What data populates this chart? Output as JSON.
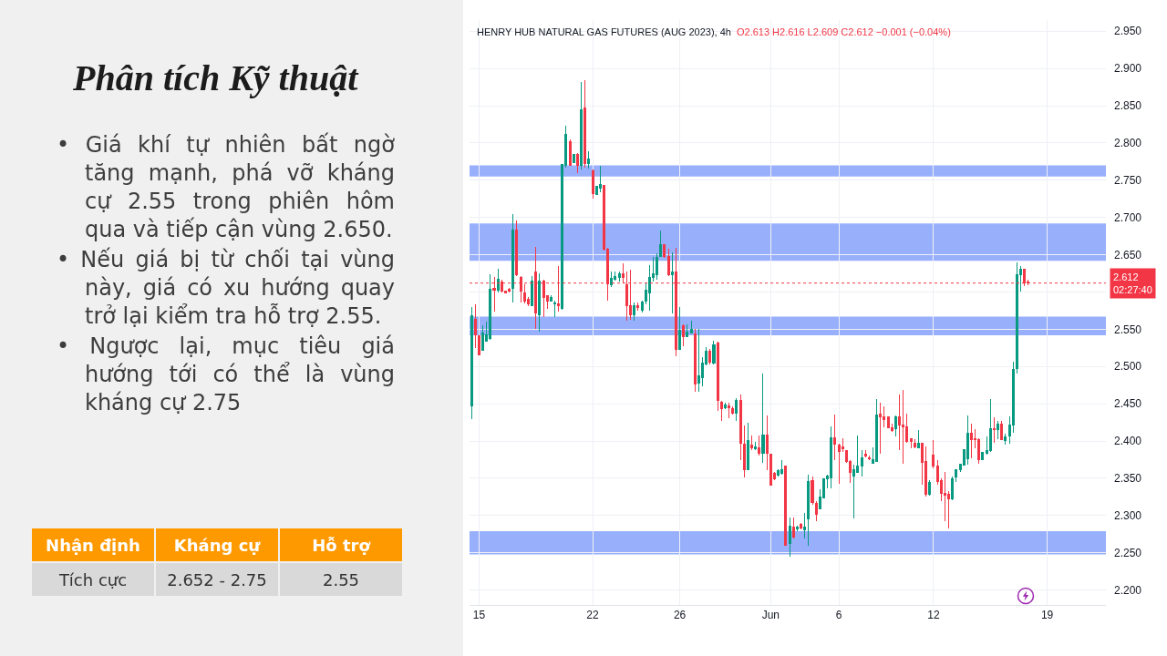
{
  "chart_data": [
    {
      "type": "candlestick",
      "title": "HENRY HUB NATURAL GAS FUTURES (AUG 2023), 4h",
      "annotations": [
        "O2.613 H2.616 L2.609 C2.612 −0.001 (−0.04%)"
      ],
      "categories": [
        null,
        null,
        "15",
        null,
        null,
        null,
        null,
        null,
        null,
        null,
        null,
        null,
        null,
        null,
        null,
        null,
        null,
        null,
        null,
        null,
        null,
        null,
        null,
        null,
        null,
        null,
        null,
        null,
        null,
        null,
        null,
        null,
        "22",
        null,
        null,
        null,
        null,
        null,
        null,
        null,
        null,
        null,
        null,
        null,
        null,
        null,
        null,
        null,
        null,
        null,
        null,
        null,
        null,
        null,
        null,
        "26",
        null,
        null,
        null,
        null,
        null,
        null,
        null,
        null,
        null,
        null,
        null,
        null,
        null,
        null,
        null,
        null,
        null,
        null,
        null,
        null,
        null,
        null,
        null,
        "Jun",
        null,
        null,
        null,
        null,
        null,
        null,
        null,
        null,
        null,
        null,
        null,
        null,
        null,
        null,
        null,
        null,
        null,
        "6",
        null,
        null,
        null,
        null,
        null,
        null,
        null,
        null,
        null,
        null,
        null,
        null,
        null,
        null,
        null,
        null,
        null,
        null,
        null,
        null,
        null,
        null,
        null,
        null,
        "12",
        null,
        null,
        null,
        null,
        null,
        null,
        null,
        null,
        null,
        null,
        null,
        null,
        null,
        null,
        null,
        null,
        null,
        null,
        null,
        null,
        null,
        null,
        null,
        null,
        null,
        null,
        null,
        null,
        null,
        "19",
        null,
        null,
        null,
        null,
        null,
        null,
        null,
        null,
        null,
        null,
        null,
        null,
        null,
        null,
        null
      ],
      "ohlc": [
        [
          2.447,
          2.58,
          2.43,
          2.568
        ],
        [
          2.563,
          2.583,
          2.525,
          2.542
        ],
        [
          2.541,
          2.542,
          2.515,
          2.516
        ],
        [
          2.522,
          2.555,
          2.521,
          2.545
        ],
        [
          2.534,
          2.56,
          2.533,
          2.542
        ],
        [
          2.538,
          2.624,
          2.536,
          2.604
        ],
        [
          2.605,
          2.62,
          2.574,
          2.602
        ],
        [
          2.602,
          2.631,
          2.6,
          2.617
        ],
        [
          2.614,
          2.616,
          2.6,
          2.601
        ],
        [
          2.601,
          2.602,
          2.598,
          2.599
        ],
        [
          2.604,
          2.605,
          2.6,
          2.601
        ],
        [
          2.605,
          2.705,
          2.586,
          2.683
        ],
        [
          2.683,
          2.696,
          2.622,
          2.623
        ],
        [
          2.62,
          2.621,
          2.586,
          2.601
        ],
        [
          2.599,
          2.61,
          2.585,
          2.588
        ],
        [
          2.59,
          2.593,
          2.581,
          2.584
        ],
        [
          2.582,
          2.621,
          2.581,
          2.615
        ],
        [
          2.627,
          2.661,
          2.55,
          2.572
        ],
        [
          2.57,
          2.625,
          2.547,
          2.615
        ],
        [
          2.615,
          2.616,
          2.566,
          2.593
        ],
        [
          2.595,
          2.596,
          2.577,
          2.588
        ],
        [
          2.588,
          2.596,
          2.587,
          2.593
        ],
        [
          2.584,
          2.589,
          2.566,
          2.585
        ],
        [
          2.584,
          2.635,
          2.574,
          2.582
        ],
        [
          2.578,
          2.772,
          2.576,
          2.771
        ],
        [
          2.77,
          2.823,
          2.767,
          2.812
        ],
        [
          2.802,
          2.805,
          2.769,
          2.77
        ],
        [
          2.774,
          2.785,
          2.773,
          2.785
        ],
        [
          2.785,
          2.787,
          2.759,
          2.77
        ],
        [
          2.77,
          2.882,
          2.764,
          2.845
        ],
        [
          2.847,
          2.884,
          2.767,
          2.773
        ],
        [
          2.773,
          2.789,
          2.766,
          2.779
        ],
        [
          2.763,
          2.764,
          2.725,
          2.732
        ],
        [
          2.731,
          2.743,
          2.73,
          2.742
        ],
        [
          2.74,
          2.769,
          2.734,
          2.744
        ],
        [
          2.743,
          2.744,
          2.656,
          2.657
        ],
        [
          2.658,
          2.659,
          2.589,
          2.611
        ],
        [
          2.61,
          2.628,
          2.607,
          2.618
        ],
        [
          2.617,
          2.628,
          2.615,
          2.621
        ],
        [
          2.62,
          2.627,
          2.614,
          2.625
        ],
        [
          2.625,
          2.639,
          2.612,
          2.62
        ],
        [
          2.61,
          2.627,
          2.561,
          2.582
        ],
        [
          2.582,
          2.63,
          2.563,
          2.57
        ],
        [
          2.57,
          2.586,
          2.561,
          2.582
        ],
        [
          2.582,
          2.586,
          2.575,
          2.579
        ],
        [
          2.576,
          2.589,
          2.573,
          2.587
        ],
        [
          2.588,
          2.613,
          2.584,
          2.602
        ],
        [
          2.599,
          2.636,
          2.575,
          2.619
        ],
        [
          2.619,
          2.647,
          2.614,
          2.625
        ],
        [
          2.623,
          2.652,
          2.617,
          2.647
        ],
        [
          2.648,
          2.682,
          2.648,
          2.663
        ],
        [
          2.663,
          2.664,
          2.646,
          2.648
        ],
        [
          2.648,
          2.658,
          2.621,
          2.623
        ],
        [
          2.623,
          2.653,
          2.571,
          2.627
        ],
        [
          2.627,
          2.659,
          2.514,
          2.523
        ],
        [
          2.523,
          2.58,
          2.522,
          2.549
        ],
        [
          2.555,
          2.557,
          2.527,
          2.54
        ],
        [
          2.54,
          2.557,
          2.539,
          2.546
        ],
        [
          2.545,
          2.562,
          2.544,
          2.55
        ],
        [
          2.544,
          2.55,
          2.466,
          2.476
        ],
        [
          2.478,
          2.55,
          2.466,
          2.487
        ],
        [
          2.485,
          2.512,
          2.474,
          2.505
        ],
        [
          2.503,
          2.526,
          2.502,
          2.521
        ],
        [
          2.521,
          2.523,
          2.503,
          2.506
        ],
        [
          2.505,
          2.534,
          2.503,
          2.529
        ],
        [
          2.532,
          2.533,
          2.441,
          2.454
        ],
        [
          2.452,
          2.454,
          2.427,
          2.443
        ],
        [
          2.445,
          2.451,
          2.443,
          2.449
        ],
        [
          2.447,
          2.451,
          2.431,
          2.445
        ],
        [
          2.443,
          2.447,
          2.436,
          2.438
        ],
        [
          2.438,
          2.457,
          2.427,
          2.454
        ],
        [
          2.454,
          2.463,
          2.374,
          2.397
        ],
        [
          2.396,
          2.421,
          2.351,
          2.362
        ],
        [
          2.362,
          2.424,
          2.361,
          2.401
        ],
        [
          2.395,
          2.407,
          2.388,
          2.391
        ],
        [
          2.39,
          2.399,
          2.388,
          2.392
        ],
        [
          2.391,
          2.407,
          2.381,
          2.383
        ],
        [
          2.383,
          2.491,
          2.371,
          2.408
        ],
        [
          2.408,
          2.434,
          2.361,
          2.383
        ],
        [
          2.382,
          2.383,
          2.34,
          2.341
        ],
        [
          2.357,
          2.359,
          2.347,
          2.349
        ],
        [
          2.354,
          2.362,
          2.353,
          2.36
        ],
        [
          2.357,
          2.375,
          2.355,
          2.362
        ],
        [
          2.366,
          2.367,
          2.259,
          2.26
        ],
        [
          2.263,
          2.298,
          2.245,
          2.286
        ],
        [
          2.284,
          2.298,
          2.269,
          2.271
        ],
        [
          2.282,
          2.286,
          2.279,
          2.285
        ],
        [
          2.288,
          2.29,
          2.282,
          2.283
        ],
        [
          2.281,
          2.304,
          2.269,
          2.284
        ],
        [
          2.296,
          2.355,
          2.26,
          2.346
        ],
        [
          2.347,
          2.353,
          2.315,
          2.317
        ],
        [
          2.316,
          2.319,
          2.292,
          2.302
        ],
        [
          2.309,
          2.335,
          2.308,
          2.325
        ],
        [
          2.324,
          2.35,
          2.323,
          2.349
        ],
        [
          2.349,
          2.355,
          2.337,
          2.353
        ],
        [
          2.351,
          2.42,
          2.337,
          2.404
        ],
        [
          2.404,
          2.435,
          2.375,
          2.396
        ],
        [
          2.395,
          2.397,
          2.343,
          2.386
        ],
        [
          2.392,
          2.404,
          2.386,
          2.39
        ],
        [
          2.387,
          2.388,
          2.371,
          2.373
        ],
        [
          2.373,
          2.374,
          2.344,
          2.358
        ],
        [
          2.353,
          2.368,
          2.296,
          2.362
        ],
        [
          2.358,
          2.408,
          2.357,
          2.366
        ],
        [
          2.366,
          2.388,
          2.353,
          2.378
        ],
        [
          2.382,
          2.388,
          2.378,
          2.38
        ],
        [
          2.378,
          2.38,
          2.375,
          2.376
        ],
        [
          2.37,
          2.392,
          2.369,
          2.375
        ],
        [
          2.373,
          2.456,
          2.372,
          2.435
        ],
        [
          2.436,
          2.451,
          2.383,
          2.432
        ],
        [
          2.432,
          2.447,
          2.419,
          2.429
        ],
        [
          2.432,
          2.433,
          2.417,
          2.418
        ],
        [
          2.418,
          2.423,
          2.412,
          2.414
        ],
        [
          2.417,
          2.434,
          2.406,
          2.433
        ],
        [
          2.433,
          2.463,
          2.388,
          2.421
        ],
        [
          2.421,
          2.469,
          2.37,
          2.419
        ],
        [
          2.419,
          2.437,
          2.398,
          2.4
        ],
        [
          2.403,
          2.404,
          2.39,
          2.399
        ],
        [
          2.397,
          2.403,
          2.39,
          2.392
        ],
        [
          2.391,
          2.415,
          2.39,
          2.397
        ],
        [
          2.397,
          2.398,
          2.341,
          2.371
        ],
        [
          2.373,
          2.393,
          2.325,
          2.329
        ],
        [
          2.329,
          2.348,
          2.327,
          2.345
        ],
        [
          2.381,
          2.401,
          2.364,
          2.367
        ],
        [
          2.367,
          2.374,
          2.341,
          2.346
        ],
        [
          2.347,
          2.35,
          2.319,
          2.33
        ],
        [
          2.33,
          2.359,
          2.293,
          2.327
        ],
        [
          2.328,
          2.333,
          2.283,
          2.323
        ],
        [
          2.323,
          2.353,
          2.321,
          2.349
        ],
        [
          2.352,
          2.362,
          2.345,
          2.361
        ],
        [
          2.362,
          2.37,
          2.358,
          2.369
        ],
        [
          2.368,
          2.389,
          2.367,
          2.388
        ],
        [
          2.376,
          2.434,
          2.368,
          2.41
        ],
        [
          2.41,
          2.423,
          2.377,
          2.402
        ],
        [
          2.403,
          2.416,
          2.39,
          2.402
        ],
        [
          2.402,
          2.404,
          2.37,
          2.375
        ],
        [
          2.375,
          2.386,
          2.374,
          2.385
        ],
        [
          2.383,
          2.406,
          2.382,
          2.387
        ],
        [
          2.387,
          2.456,
          2.385,
          2.416
        ],
        [
          2.416,
          2.432,
          2.398,
          2.415
        ],
        [
          2.415,
          2.427,
          2.402,
          2.423
        ],
        [
          2.423,
          2.427,
          2.401,
          2.402
        ],
        [
          2.401,
          2.41,
          2.395,
          2.406
        ],
        [
          2.407,
          2.433,
          2.397,
          2.421
        ],
        [
          2.421,
          2.506,
          2.411,
          2.496
        ],
        [
          2.497,
          2.64,
          2.491,
          2.623
        ],
        [
          2.623,
          2.635,
          2.601,
          2.63
        ],
        [
          2.63,
          2.631,
          2.608,
          2.612
        ],
        [
          2.613,
          2.616,
          2.609,
          2.612
        ],
        null,
        null,
        null,
        null,
        null,
        null,
        null,
        null,
        null,
        null,
        null,
        null,
        null,
        null,
        null,
        null,
        null,
        null,
        null,
        null
      ],
      "colors": [
        "#089981",
        "#f23645",
        "#f23645",
        "#089981",
        "#089981",
        "#089981",
        "#f23645",
        "#089981",
        "#f23645",
        "#f23645",
        "#f23645",
        "#089981",
        "#f23645",
        "#f23645",
        "#f23645",
        "#f23645",
        "#089981",
        "#f23645",
        "#089981",
        "#f23645",
        "#f23645",
        "#089981",
        "#089981",
        "#f23645",
        "#089981",
        "#089981",
        "#f23645",
        "#089981",
        "#f23645",
        "#089981",
        "#f23645",
        "#089981",
        "#f23645",
        "#089981",
        "#089981",
        "#f23645",
        "#f23645",
        "#089981",
        "#089981",
        "#089981",
        "#f23645",
        "#f23645",
        "#f23645",
        "#089981",
        "#f23645",
        "#089981",
        "#089981",
        "#089981",
        "#089981",
        "#089981",
        "#089981",
        "#f23645",
        "#f23645",
        "#089981",
        "#f23645",
        "#089981",
        "#f23645",
        "#089981",
        "#089981",
        "#f23645",
        "#089981",
        "#089981",
        "#089981",
        "#f23645",
        "#089981",
        "#f23645",
        "#f23645",
        "#089981",
        "#f23645",
        "#f23645",
        "#089981",
        "#f23645",
        "#f23645",
        "#089981",
        "#f23645",
        "#089981",
        "#f23645",
        "#089981",
        "#f23645",
        "#f23645",
        "#f23645",
        "#089981",
        "#089981",
        "#f23645",
        "#089981",
        "#f23645",
        "#089981",
        "#f23645",
        "#089981",
        "#089981",
        "#f23645",
        "#f23645",
        "#089981",
        "#089981",
        "#089981",
        "#089981",
        "#f23645",
        "#f23645",
        "#f23645",
        "#f23645",
        "#f23645",
        "#089981",
        "#089981",
        "#089981",
        "#f23645",
        "#f23645",
        "#089981",
        "#089981",
        "#f23645",
        "#f23645",
        "#f23645",
        "#f23645",
        "#089981",
        "#f23645",
        "#f23645",
        "#f23645",
        "#f23645",
        "#f23645",
        "#089981",
        "#f23645",
        "#f23645",
        "#089981",
        "#f23645",
        "#f23645",
        "#f23645",
        "#f23645",
        "#f23645",
        "#089981",
        "#089981",
        "#089981",
        "#089981",
        "#089981",
        "#f23645",
        "#f23645",
        "#f23645",
        "#089981",
        "#089981",
        "#089981",
        "#f23645",
        "#089981",
        "#f23645",
        "#089981",
        "#089981",
        "#089981",
        "#089981",
        "#089981",
        "#f23645",
        "#f23645",
        null,
        null,
        null,
        null,
        null,
        null,
        null,
        null,
        null,
        null,
        null,
        null,
        null,
        null,
        null,
        null,
        null,
        null,
        null,
        null
      ],
      "ylim": [
        2.18,
        2.965
      ],
      "yticks": [
        {
          "value": 2.2,
          "label": "2.200"
        },
        {
          "value": 2.25,
          "label": "2.250"
        },
        {
          "value": 2.3,
          "label": "2.300"
        },
        {
          "value": 2.35,
          "label": "2.350"
        },
        {
          "value": 2.4,
          "label": "2.400"
        },
        {
          "value": 2.45,
          "label": "2.450"
        },
        {
          "value": 2.5,
          "label": "2.500"
        },
        {
          "value": 2.55,
          "label": "2.550"
        },
        {
          "value": 2.6,
          "label": null
        },
        {
          "value": 2.65,
          "label": "2.650"
        },
        {
          "value": 2.7,
          "label": "2.700"
        },
        {
          "value": 2.75,
          "label": "2.750"
        },
        {
          "value": 2.8,
          "label": "2.800"
        },
        {
          "value": 2.85,
          "label": "2.850"
        },
        {
          "value": 2.9,
          "label": "2.900"
        },
        {
          "value": 2.95,
          "label": "2.950"
        }
      ],
      "grid": true,
      "bands": [
        {
          "axis": "y",
          "from": 2.755,
          "to": 2.77,
          "color": "#98b0fc"
        },
        {
          "axis": "y",
          "from": 2.642,
          "to": 2.692,
          "color": "#98b0fc"
        },
        {
          "axis": "y",
          "from": 2.542,
          "to": 2.567,
          "color": "#98b0fc"
        },
        {
          "axis": "y",
          "from": 2.248,
          "to": 2.279,
          "color": "#98b0fc"
        }
      ],
      "ref_lines": [
        {
          "axis": "y",
          "value": 2.612,
          "label": "2.612\n02:27:40",
          "color": "#f23645",
          "line_style": "dotted"
        }
      ]
    },
    {
      "type": "other",
      "title": "Phân tích Kỹ thuật",
      "annotations": [
        "• Giá khí tự nhiên bất ngờ tăng mạnh, phá vỡ kháng cự 2.55 trong phiên hôm qua và tiếp cận vùng 2.650.",
        "• Nếu giá bị từ chối tại vùng này, giá có xu hướng quay trở lại kiểm tra hỗ trợ 2.55.",
        "• Ngược lại, mục tiêu giá hướng tới có thể là vùng kháng cự 2.75"
      ]
    },
    {
      "type": "other",
      "categories": [
        "Nhận định",
        "Kháng cự",
        "Hỗ trợ"
      ],
      "annotations": [
        "Tích cực",
        "2.652 - 2.75",
        "2.55"
      ]
    }
  ]
}
